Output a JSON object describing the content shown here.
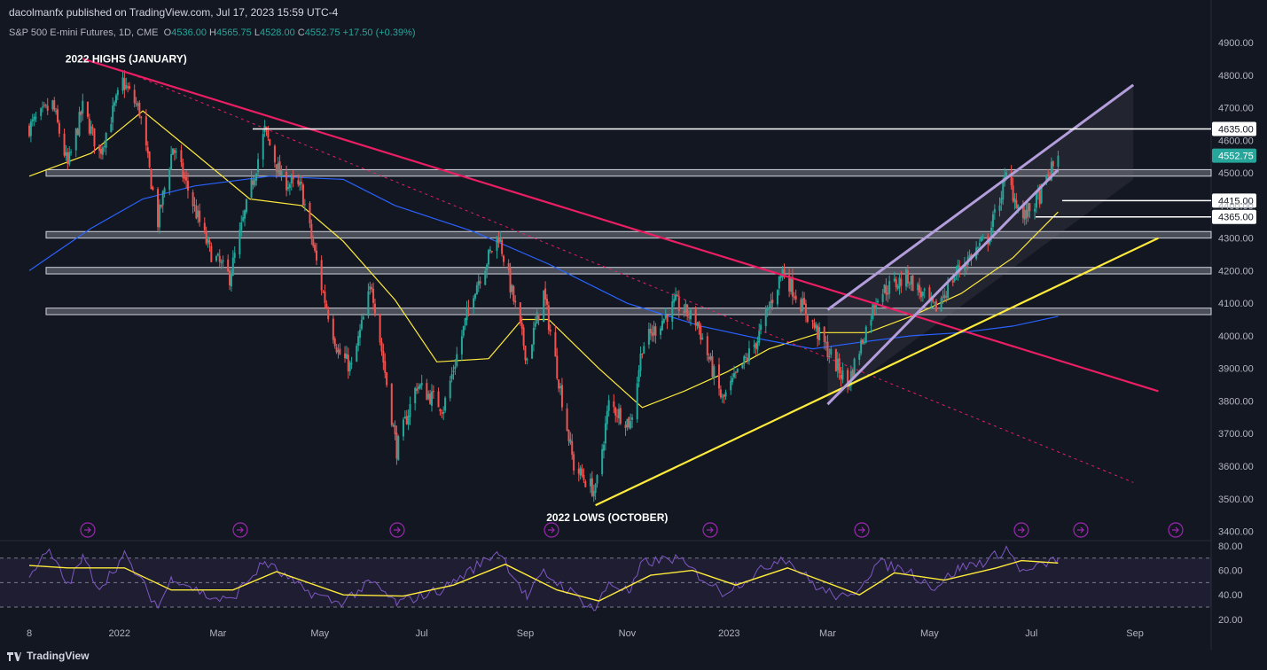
{
  "header": {
    "publisher_text": "dacolmanfx published on TradingView.com, Jul 17, 2023 15:59 UTC-4",
    "symbol": "S&P 500 E-mini Futures, 1D, CME",
    "ohlc": [
      {
        "key": "O",
        "value": "4536.00"
      },
      {
        "key": "H",
        "value": "4565.75"
      },
      {
        "key": "L",
        "value": "4528.00"
      },
      {
        "key": "C",
        "value": "4552.75"
      }
    ],
    "change": "+17.50 (+0.39%)"
  },
  "footer": {
    "brand": "TradingView"
  },
  "colors": {
    "background": "#131722",
    "up": "#26a69a",
    "down": "#ef5350",
    "resistance_trend": "#e91e63",
    "support_trend": "#ffeb3b",
    "channel": "#b39ddb",
    "ma50": "#ffeb3b",
    "ma200": "#2962ff",
    "rsi": "#7e57c2",
    "last_price_tag": "#26a69a"
  },
  "chart_data": [
    {
      "type": "candlestick",
      "title": "S&P 500 E-mini Futures, 1D, CME",
      "x_axis": {
        "tick_labels": [
          "8",
          "2022",
          "Mar",
          "May",
          "Jul",
          "Sep",
          "Nov",
          "2023",
          "Mar",
          "May",
          "Jul",
          "Sep"
        ]
      },
      "y_axis": {
        "side": "right",
        "ylim": [
          3400,
          4900
        ],
        "tick_labels": [
          "4900.00",
          "4800.00",
          "4700.00",
          "4600.00",
          "4500.00",
          "4400.00",
          "4300.00",
          "4200.00",
          "4100.00",
          "4000.00",
          "3900.00",
          "3800.00",
          "3700.00",
          "3600.00",
          "3500.00",
          "3400.00"
        ]
      },
      "grid": false,
      "price_path": {
        "start": "2021-11-08",
        "end": "2023-07-17",
        "anchors": [
          {
            "date": "2021-11-08",
            "close": 4640
          },
          {
            "date": "2021-11-22",
            "close": 4710
          },
          {
            "date": "2021-12-01",
            "close": 4520
          },
          {
            "date": "2021-12-10",
            "close": 4700
          },
          {
            "date": "2021-12-20",
            "close": 4560
          },
          {
            "date": "2022-01-03",
            "close": 4780
          },
          {
            "date": "2022-01-13",
            "close": 4690
          },
          {
            "date": "2022-01-24",
            "close": 4350
          },
          {
            "date": "2022-02-02",
            "close": 4580
          },
          {
            "date": "2022-02-24",
            "close": 4260
          },
          {
            "date": "2022-03-08",
            "close": 4180
          },
          {
            "date": "2022-03-29",
            "close": 4630
          },
          {
            "date": "2022-04-08",
            "close": 4480
          },
          {
            "date": "2022-04-20",
            "close": 4450
          },
          {
            "date": "2022-05-02",
            "close": 4150
          },
          {
            "date": "2022-05-12",
            "close": 3950
          },
          {
            "date": "2022-05-20",
            "close": 3900
          },
          {
            "date": "2022-06-01",
            "close": 4160
          },
          {
            "date": "2022-06-16",
            "close": 3650
          },
          {
            "date": "2022-06-28",
            "close": 3850
          },
          {
            "date": "2022-07-14",
            "close": 3780
          },
          {
            "date": "2022-08-01",
            "close": 4140
          },
          {
            "date": "2022-08-16",
            "close": 4310
          },
          {
            "date": "2022-09-02",
            "close": 3930
          },
          {
            "date": "2022-09-12",
            "close": 4130
          },
          {
            "date": "2022-09-30",
            "close": 3600
          },
          {
            "date": "2022-10-13",
            "close": 3520
          },
          {
            "date": "2022-10-21",
            "close": 3790
          },
          {
            "date": "2022-11-03",
            "close": 3730
          },
          {
            "date": "2022-11-10",
            "close": 3970
          },
          {
            "date": "2022-11-30",
            "close": 4100
          },
          {
            "date": "2022-12-13",
            "close": 4040
          },
          {
            "date": "2022-12-28",
            "close": 3800
          },
          {
            "date": "2023-01-18",
            "close": 3990
          },
          {
            "date": "2023-02-02",
            "close": 4200
          },
          {
            "date": "2023-02-24",
            "close": 4000
          },
          {
            "date": "2023-03-13",
            "close": 3850
          },
          {
            "date": "2023-03-31",
            "close": 4130
          },
          {
            "date": "2023-04-18",
            "close": 4180
          },
          {
            "date": "2023-05-04",
            "close": 4080
          },
          {
            "date": "2023-05-19",
            "close": 4210
          },
          {
            "date": "2023-06-05",
            "close": 4300
          },
          {
            "date": "2023-06-16",
            "close": 4490
          },
          {
            "date": "2023-06-26",
            "close": 4360
          },
          {
            "date": "2023-07-06",
            "close": 4430
          },
          {
            "date": "2023-07-17",
            "close": 4552.75
          }
        ]
      },
      "moving_averages": [
        {
          "color": "#ffeb3b",
          "points": [
            {
              "date": "2021-11-08",
              "value": 4490
            },
            {
              "date": "2021-12-15",
              "value": 4560
            },
            {
              "date": "2022-01-15",
              "value": 4690
            },
            {
              "date": "2022-02-15",
              "value": 4560
            },
            {
              "date": "2022-03-20",
              "value": 4420
            },
            {
              "date": "2022-04-20",
              "value": 4400
            },
            {
              "date": "2022-05-15",
              "value": 4290
            },
            {
              "date": "2022-06-15",
              "value": 4110
            },
            {
              "date": "2022-07-10",
              "value": 3920
            },
            {
              "date": "2022-08-10",
              "value": 3930
            },
            {
              "date": "2022-08-30",
              "value": 4050
            },
            {
              "date": "2022-09-15",
              "value": 4050
            },
            {
              "date": "2022-10-15",
              "value": 3900
            },
            {
              "date": "2022-11-10",
              "value": 3780
            },
            {
              "date": "2022-12-05",
              "value": 3830
            },
            {
              "date": "2022-12-31",
              "value": 3890
            },
            {
              "date": "2023-01-25",
              "value": 3960
            },
            {
              "date": "2023-02-25",
              "value": 4010
            },
            {
              "date": "2023-03-25",
              "value": 4010
            },
            {
              "date": "2023-04-20",
              "value": 4060
            },
            {
              "date": "2023-05-20",
              "value": 4130
            },
            {
              "date": "2023-06-20",
              "value": 4240
            },
            {
              "date": "2023-07-17",
              "value": 4380
            }
          ]
        },
        {
          "color": "#2962ff",
          "points": [
            {
              "date": "2021-11-08",
              "value": 4200
            },
            {
              "date": "2021-12-15",
              "value": 4330
            },
            {
              "date": "2022-01-15",
              "value": 4420
            },
            {
              "date": "2022-02-15",
              "value": 4460
            },
            {
              "date": "2022-04-01",
              "value": 4490
            },
            {
              "date": "2022-05-15",
              "value": 4480
            },
            {
              "date": "2022-06-15",
              "value": 4400
            },
            {
              "date": "2022-08-01",
              "value": 4320
            },
            {
              "date": "2022-09-15",
              "value": 4220
            },
            {
              "date": "2022-11-01",
              "value": 4100
            },
            {
              "date": "2022-12-15",
              "value": 4030
            },
            {
              "date": "2023-01-20",
              "value": 3990
            },
            {
              "date": "2023-02-20",
              "value": 3960
            },
            {
              "date": "2023-03-20",
              "value": 3980
            },
            {
              "date": "2023-04-20",
              "value": 4000
            },
            {
              "date": "2023-05-20",
              "value": 4010
            },
            {
              "date": "2023-06-20",
              "value": 4030
            },
            {
              "date": "2023-07-17",
              "value": 4060
            }
          ]
        }
      ],
      "horizontal_levels": [
        {
          "label": "4635.00",
          "value": 4635
        },
        {
          "label": "4415.00",
          "value": 4415
        },
        {
          "label": "4365.00",
          "value": 4365
        }
      ],
      "zones": [
        {
          "low": 4490,
          "high": 4510
        },
        {
          "low": 4300,
          "high": 4320
        },
        {
          "low": 4190,
          "high": 4210
        },
        {
          "low": 4065,
          "high": 4085
        }
      ],
      "trendlines": [
        {
          "name": "resistance",
          "from": {
            "date": "2021-12-10",
            "value": 4850
          },
          "to": {
            "date": "2023-09-15",
            "value": 3830
          }
        },
        {
          "name": "resistance-extension",
          "from": {
            "date": "2022-01-05",
            "value": 4810
          },
          "to": {
            "date": "2023-08-31",
            "value": 3550
          }
        },
        {
          "name": "support",
          "from": {
            "date": "2022-10-13",
            "value": 3480
          },
          "to": {
            "date": "2023-09-15",
            "value": 4300
          }
        },
        {
          "name": "channel-upper",
          "from": {
            "date": "2023-03-01",
            "value": 4080
          },
          "to": {
            "date": "2023-08-31",
            "value": 4770
          }
        },
        {
          "name": "channel-lower",
          "from": {
            "date": "2023-03-01",
            "value": 3790
          },
          "to": {
            "date": "2023-07-17",
            "value": 4510
          }
        }
      ],
      "annotations": [
        {
          "text": "2022 HIGHS (JANUARY)",
          "date": "2022-01-05",
          "value": 4850
        },
        {
          "text": "2022 LOWS (OCTOBER)",
          "date": "2022-10-20",
          "value": 3470
        }
      ],
      "last_price": {
        "label": "4552.75",
        "value": 4552.75
      }
    },
    {
      "type": "line",
      "y_axis": {
        "side": "right",
        "ylim": [
          20,
          80
        ],
        "tick_labels": [
          "80.00",
          "60.00",
          "40.00",
          "20.00"
        ]
      },
      "bands": {
        "upper": 70,
        "lower": 30
      },
      "series": [
        {
          "color": "#7e57c2",
          "points": [
            {
              "date": "2021-11-08",
              "value": 58
            },
            {
              "date": "2021-11-20",
              "value": 75
            },
            {
              "date": "2021-12-01",
              "value": 48
            },
            {
              "date": "2021-12-10",
              "value": 70
            },
            {
              "date": "2021-12-20",
              "value": 46
            },
            {
              "date": "2022-01-04",
              "value": 72
            },
            {
              "date": "2022-01-24",
              "value": 30
            },
            {
              "date": "2022-02-02",
              "value": 55
            },
            {
              "date": "2022-02-24",
              "value": 38
            },
            {
              "date": "2022-03-08",
              "value": 35
            },
            {
              "date": "2022-03-29",
              "value": 67
            },
            {
              "date": "2022-04-20",
              "value": 45
            },
            {
              "date": "2022-05-12",
              "value": 33
            },
            {
              "date": "2022-06-01",
              "value": 50
            },
            {
              "date": "2022-06-16",
              "value": 33
            },
            {
              "date": "2022-07-14",
              "value": 45
            },
            {
              "date": "2022-08-16",
              "value": 76
            },
            {
              "date": "2022-09-02",
              "value": 38
            },
            {
              "date": "2022-09-12",
              "value": 58
            },
            {
              "date": "2022-10-13",
              "value": 28
            },
            {
              "date": "2022-10-21",
              "value": 50
            },
            {
              "date": "2022-11-03",
              "value": 42
            },
            {
              "date": "2022-11-10",
              "value": 66
            },
            {
              "date": "2022-11-30",
              "value": 70
            },
            {
              "date": "2022-12-28",
              "value": 42
            },
            {
              "date": "2023-01-18",
              "value": 58
            },
            {
              "date": "2023-02-02",
              "value": 72
            },
            {
              "date": "2023-02-24",
              "value": 45
            },
            {
              "date": "2023-03-13",
              "value": 36
            },
            {
              "date": "2023-03-31",
              "value": 66
            },
            {
              "date": "2023-04-18",
              "value": 60
            },
            {
              "date": "2023-05-04",
              "value": 46
            },
            {
              "date": "2023-05-19",
              "value": 62
            },
            {
              "date": "2023-06-05",
              "value": 68
            },
            {
              "date": "2023-06-16",
              "value": 78
            },
            {
              "date": "2023-06-26",
              "value": 58
            },
            {
              "date": "2023-07-06",
              "value": 63
            },
            {
              "date": "2023-07-17",
              "value": 70
            }
          ]
        },
        {
          "color": "#ffeb3b",
          "points": [
            {
              "date": "2021-11-08",
              "value": 64
            },
            {
              "date": "2021-12-01",
              "value": 62
            },
            {
              "date": "2022-01-04",
              "value": 62
            },
            {
              "date": "2022-02-01",
              "value": 44
            },
            {
              "date": "2022-03-10",
              "value": 44
            },
            {
              "date": "2022-04-05",
              "value": 59
            },
            {
              "date": "2022-05-15",
              "value": 40
            },
            {
              "date": "2022-06-20",
              "value": 39
            },
            {
              "date": "2022-07-20",
              "value": 48
            },
            {
              "date": "2022-08-20",
              "value": 65
            },
            {
              "date": "2022-09-20",
              "value": 44
            },
            {
              "date": "2022-10-15",
              "value": 35
            },
            {
              "date": "2022-11-15",
              "value": 56
            },
            {
              "date": "2022-12-10",
              "value": 60
            },
            {
              "date": "2023-01-05",
              "value": 48
            },
            {
              "date": "2023-02-05",
              "value": 62
            },
            {
              "date": "2023-03-20",
              "value": 40
            },
            {
              "date": "2023-04-10",
              "value": 58
            },
            {
              "date": "2023-05-10",
              "value": 52
            },
            {
              "date": "2023-06-10",
              "value": 62
            },
            {
              "date": "2023-06-25",
              "value": 68
            },
            {
              "date": "2023-07-17",
              "value": 66
            }
          ]
        }
      ]
    }
  ]
}
